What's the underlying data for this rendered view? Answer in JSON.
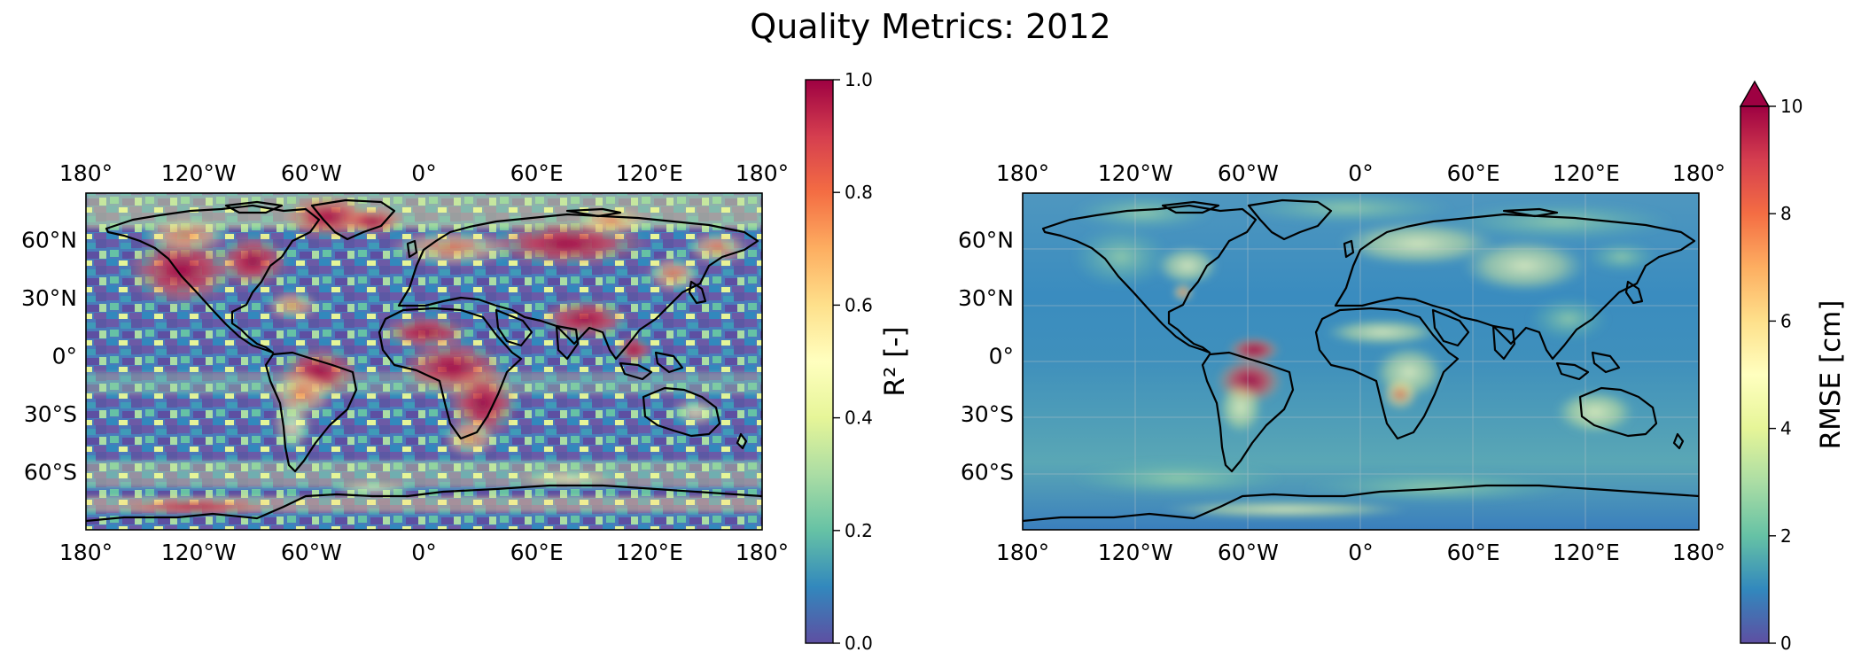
{
  "figure": {
    "title": "Quality Metrics: 2012"
  },
  "panels": [
    {
      "id": "r2",
      "colorbar": {
        "label": "R² [-]",
        "ticks": [
          "0.0",
          "0.2",
          "0.4",
          "0.6",
          "0.8",
          "1.0"
        ],
        "min": 0,
        "max": 1,
        "extend": "neither"
      },
      "lon_ticks": [
        "180°",
        "120°W",
        "60°W",
        "0°",
        "60°E",
        "120°E",
        "180°"
      ],
      "lat_ticks": [
        "60°N",
        "30°N",
        "0°",
        "30°S",
        "60°S"
      ]
    },
    {
      "id": "rmse",
      "colorbar": {
        "label": "RMSE [cm]",
        "ticks": [
          "0",
          "2",
          "4",
          "6",
          "8",
          "10"
        ],
        "min": 0,
        "max": 10,
        "extend": "max"
      },
      "lon_ticks": [
        "180°",
        "120°W",
        "60°W",
        "0°",
        "60°E",
        "120°E",
        "180°"
      ],
      "lat_ticks": [
        "60°N",
        "30°N",
        "0°",
        "30°S",
        "60°S"
      ]
    }
  ],
  "colormap": {
    "name": "Spectral_r",
    "stops": [
      "#5e4fa2",
      "#3288bd",
      "#66c2a5",
      "#abdda4",
      "#e6f598",
      "#ffffbf",
      "#fee08b",
      "#fdae61",
      "#f46d43",
      "#d53e4f",
      "#9e0142"
    ]
  }
}
